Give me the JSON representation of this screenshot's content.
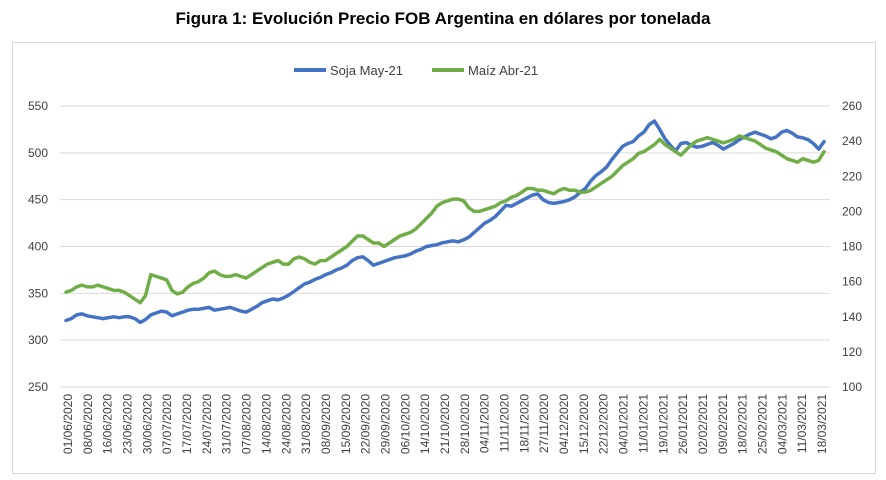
{
  "title": "Figura 1: Evolución Precio FOB Argentina en dólares por tonelada",
  "colors": {
    "soja": "#4472c4",
    "maiz": "#70ad47",
    "grid": "#d9d9d9",
    "text": "#404040"
  },
  "chart_data": {
    "type": "line",
    "title": "Figura 1: Evolución Precio FOB Argentina en dólares por tonelada",
    "xlabel": "",
    "ylabel": "",
    "legend_position": "top-center",
    "grid": true,
    "x_ticks": [
      "01/06/2020",
      "08/06/2020",
      "16/06/2020",
      "23/06/2020",
      "30/06/2020",
      "07/07/2020",
      "17/07/2020",
      "24/07/2020",
      "31/07/2020",
      "07/08/2020",
      "14/08/2020",
      "24/08/2020",
      "31/08/2020",
      "08/09/2020",
      "15/09/2020",
      "22/09/2020",
      "29/09/2020",
      "06/10/2020",
      "14/10/2020",
      "21/10/2020",
      "28/10/2020",
      "04/11/2020",
      "11/11/2020",
      "18/11/2020",
      "27/11/2020",
      "04/12/2020",
      "15/12/2020",
      "22/12/2020",
      "04/01/2021",
      "11/01/2021",
      "19/01/2021",
      "26/01/2021",
      "02/02/2021",
      "09/02/2021",
      "18/02/2021",
      "25/02/2021",
      "04/03/2021",
      "11/03/2021",
      "18/03/2021"
    ],
    "y_left": {
      "min": 250,
      "max": 550,
      "ticks": [
        250,
        300,
        350,
        400,
        450,
        500,
        550
      ]
    },
    "y_right": {
      "min": 100,
      "max": 260,
      "ticks": [
        100,
        120,
        140,
        160,
        180,
        200,
        220,
        240,
        260
      ]
    },
    "series": [
      {
        "name": "Soja May-21",
        "axis": "left",
        "color": "#4472c4",
        "values": [
          321,
          323,
          327,
          328,
          326,
          325,
          324,
          323,
          324,
          325,
          324,
          325,
          325,
          323,
          319,
          322,
          327,
          329,
          331,
          330,
          326,
          328,
          330,
          332,
          333,
          333,
          334,
          335,
          332,
          333,
          334,
          335,
          333,
          331,
          330,
          333,
          336,
          340,
          342,
          344,
          343,
          345,
          348,
          352,
          356,
          360,
          362,
          365,
          367,
          370,
          372,
          375,
          377,
          380,
          385,
          388,
          389,
          385,
          380,
          382,
          384,
          386,
          388,
          389,
          390,
          392,
          395,
          397,
          400,
          401,
          402,
          404,
          405,
          406,
          405,
          407,
          410,
          415,
          420,
          425,
          428,
          432,
          438,
          444,
          443,
          446,
          449,
          452,
          455,
          456,
          450,
          447,
          446,
          447,
          448,
          450,
          453,
          458,
          462,
          470,
          476,
          480,
          485,
          493,
          500,
          507,
          510,
          512,
          518,
          522,
          530,
          534,
          525,
          515,
          508,
          502,
          510,
          511,
          508,
          506,
          507,
          509,
          511,
          508,
          504,
          507,
          510,
          514,
          517,
          520,
          522,
          520,
          518,
          515,
          517,
          522,
          524,
          521,
          517,
          516,
          514,
          510,
          504,
          512
        ]
      },
      {
        "name": "Maíz Abr-21",
        "axis": "right",
        "color": "#70ad47",
        "values": [
          154,
          155,
          157,
          158,
          157,
          157,
          158,
          157,
          156,
          155,
          155,
          154,
          152,
          150,
          148,
          152,
          164,
          163,
          162,
          161,
          155,
          153,
          154,
          157,
          159,
          160,
          162,
          165,
          166,
          164,
          163,
          163,
          164,
          163,
          162,
          164,
          166,
          168,
          170,
          171,
          172,
          170,
          170,
          173,
          174,
          173,
          171,
          170,
          172,
          172,
          174,
          176,
          178,
          180,
          183,
          186,
          186,
          184,
          182,
          182,
          180,
          182,
          184,
          186,
          187,
          188,
          190,
          193,
          196,
          199,
          203,
          205,
          206,
          207,
          207,
          206,
          202,
          200,
          200,
          201,
          202,
          203,
          205,
          206,
          208,
          209,
          211,
          213,
          213,
          212,
          212,
          211,
          210,
          212,
          213,
          212,
          212,
          211,
          211,
          212,
          214,
          216,
          218,
          220,
          223,
          226,
          228,
          230,
          233,
          234,
          236,
          238,
          241,
          238,
          236,
          234,
          232,
          235,
          238,
          240,
          241,
          242,
          241,
          240,
          239,
          240,
          241,
          243,
          242,
          241,
          240,
          238,
          236,
          235,
          234,
          232,
          230,
          229,
          228,
          230,
          229,
          228,
          229,
          234
        ]
      }
    ]
  }
}
